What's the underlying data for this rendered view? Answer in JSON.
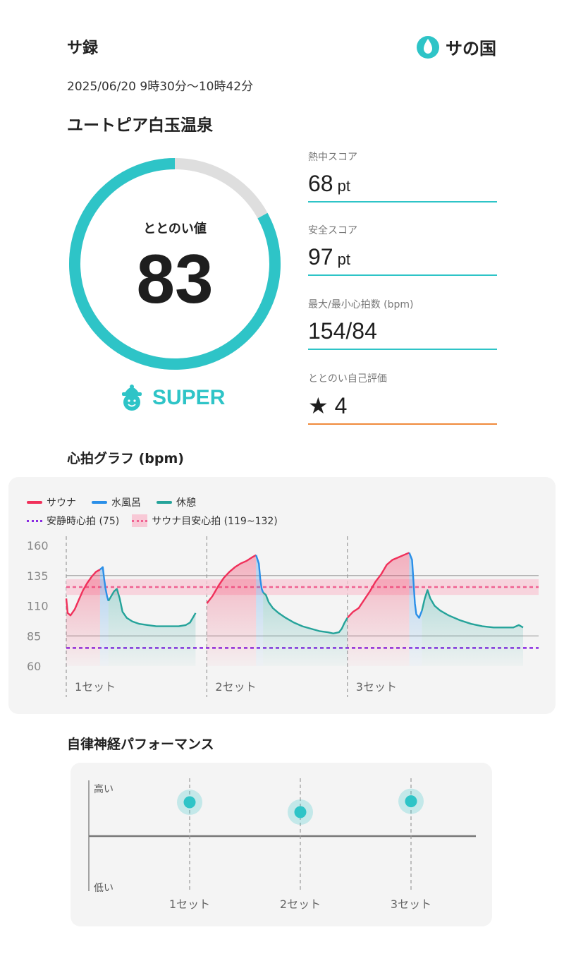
{
  "header": {
    "title": "サ録",
    "logo_text": "サの国"
  },
  "session": {
    "time": "2025/06/20 9時30分〜10時42分",
    "facility": "ユートピア白玉温泉"
  },
  "score": {
    "label": "ととのい値",
    "value": "83",
    "fraction": 0.83,
    "rank": "SUPER"
  },
  "metrics": [
    {
      "label": "熱中スコア",
      "value": "68",
      "unit": "pt"
    },
    {
      "label": "安全スコア",
      "value": "97",
      "unit": "pt"
    },
    {
      "label": "最大/最小心拍数 (bpm)",
      "value": "154/84",
      "unit": ""
    },
    {
      "label": "ととのい自己評価",
      "value": "★ 4",
      "unit": ""
    }
  ],
  "colors": {
    "accent": "#2ec4c7",
    "sauna": "#f0305a",
    "water": "#2a8fe8",
    "rest": "#25a39a",
    "resting_hr": "#8a2be2",
    "target": "#f06292",
    "self_eval_line": "#f08a3c"
  },
  "heart_chart": {
    "title": "心拍グラフ (bpm)",
    "legend": {
      "sauna": "サウナ",
      "water": "水風呂",
      "rest": "休憩",
      "resting": "安静時心拍 (75)",
      "target": "サウナ目安心拍 (119~132)"
    }
  },
  "chart_data": {
    "type": "line",
    "title": "心拍グラフ (bpm)",
    "ylim": [
      60,
      165
    ],
    "y_ticks": [
      "160",
      "135",
      "110",
      "85",
      "60"
    ],
    "y_tick_values": [
      160,
      135,
      110,
      85,
      60
    ],
    "reference_lines": {
      "resting": 75,
      "target_low": 119,
      "target_high": 132
    },
    "sets": [
      "1セット",
      "2セット",
      "3セット"
    ],
    "series": [
      {
        "name": "サウナ",
        "phase": "sauna",
        "segments": [
          [
            [
              0,
              116
            ],
            [
              1,
              104
            ],
            [
              3,
              102
            ],
            [
              6,
              107
            ],
            [
              9,
              115
            ],
            [
              12,
              123
            ],
            [
              15,
              129
            ],
            [
              18,
              134
            ],
            [
              21,
              138
            ],
            [
              24,
              140
            ]
          ],
          [
            [
              100,
              112
            ],
            [
              104,
              118
            ],
            [
              108,
              126
            ],
            [
              112,
              133
            ],
            [
              116,
              138
            ],
            [
              120,
              142
            ],
            [
              124,
              145
            ],
            [
              128,
              147
            ],
            [
              132,
              150
            ],
            [
              135,
              152
            ]
          ],
          [
            [
              200,
              100
            ],
            [
              204,
              105
            ],
            [
              208,
              108
            ],
            [
              212,
              115
            ],
            [
              216,
              122
            ],
            [
              220,
              130
            ],
            [
              224,
              136
            ],
            [
              228,
              144
            ],
            [
              232,
              148
            ],
            [
              236,
              150
            ],
            [
              240,
              152
            ],
            [
              244,
              154
            ]
          ]
        ]
      },
      {
        "name": "水風呂",
        "phase": "water",
        "segments": [
          [
            [
              24,
              140
            ],
            [
              26,
              142
            ],
            [
              27,
              132
            ],
            [
              28,
              124
            ],
            [
              29,
              118
            ],
            [
              30,
              114
            ]
          ],
          [
            [
              135,
              152
            ],
            [
              137,
              145
            ],
            [
              138,
              132
            ],
            [
              139,
              124
            ],
            [
              140,
              121
            ]
          ],
          [
            [
              244,
              154
            ],
            [
              246,
              148
            ],
            [
              247,
              130
            ],
            [
              248,
              112
            ],
            [
              249,
              103
            ],
            [
              251,
              100
            ],
            [
              253,
              106
            ]
          ]
        ]
      },
      {
        "name": "休憩",
        "phase": "rest",
        "segments": [
          [
            [
              30,
              114
            ],
            [
              32,
              118
            ],
            [
              34,
              122
            ],
            [
              36,
              124
            ],
            [
              38,
              116
            ],
            [
              40,
              105
            ],
            [
              43,
              100
            ],
            [
              47,
              97
            ],
            [
              52,
              95
            ],
            [
              58,
              94
            ],
            [
              64,
              93
            ],
            [
              70,
              93
            ],
            [
              75,
              93
            ],
            [
              80,
              93
            ],
            [
              85,
              94
            ],
            [
              88,
              96
            ],
            [
              90,
              100
            ],
            [
              92,
              104
            ]
          ],
          [
            [
              140,
              121
            ],
            [
              142,
              119
            ],
            [
              144,
              113
            ],
            [
              147,
              108
            ],
            [
              151,
              104
            ],
            [
              156,
              100
            ],
            [
              162,
              96
            ],
            [
              168,
              93
            ],
            [
              174,
              91
            ],
            [
              180,
              89
            ],
            [
              186,
              88
            ],
            [
              190,
              87
            ],
            [
              194,
              88
            ],
            [
              196,
              91
            ],
            [
              198,
              96
            ],
            [
              200,
              100
            ]
          ],
          [
            [
              253,
              106
            ],
            [
              255,
              116
            ],
            [
              257,
              123
            ],
            [
              259,
              116
            ],
            [
              262,
              110
            ],
            [
              266,
              106
            ],
            [
              272,
              102
            ],
            [
              280,
              98
            ],
            [
              288,
              95
            ],
            [
              296,
              93
            ],
            [
              304,
              92
            ],
            [
              312,
              92
            ],
            [
              318,
              92
            ],
            [
              322,
              94
            ],
            [
              325,
              92
            ]
          ]
        ]
      }
    ]
  },
  "ans_chart": {
    "title": "自律神経パフォーマンス",
    "y_high": "高い",
    "y_low": "低い",
    "sets": [
      "1セット",
      "2セット",
      "3セット"
    ],
    "values": [
      0.85,
      0.75,
      0.86
    ]
  }
}
